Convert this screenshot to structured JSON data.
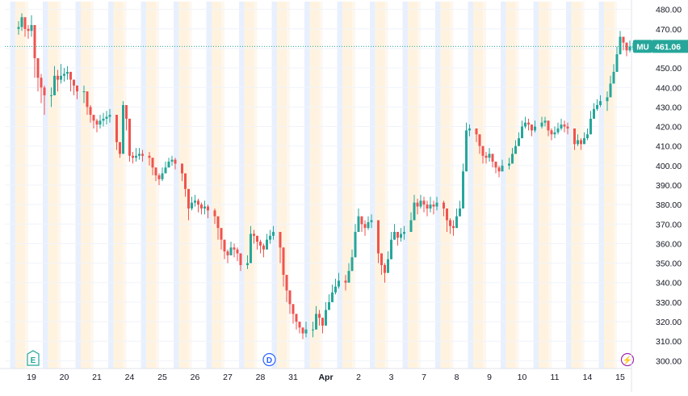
{
  "chart_data": {
    "type": "candlestick",
    "symbol": "MU",
    "last_price": "461.06",
    "colors": {
      "up": "#26a69a",
      "down": "#ef5350",
      "band_premarket": "#fff3e0",
      "band_afterhours": "#e8f0fe",
      "price_line": "#26a69a",
      "axis_text": "#131722",
      "grid": "#f0f3fa",
      "event_earnings": "#26a69a",
      "event_dividend": "#2962ff",
      "event_split": "#9c27b0"
    },
    "y_axis": {
      "min": 296,
      "max": 484,
      "ticks": [
        "300.00",
        "310.00",
        "320.00",
        "330.00",
        "340.00",
        "350.00",
        "360.00",
        "370.00",
        "380.00",
        "390.00",
        "400.00",
        "410.00",
        "420.00",
        "430.00",
        "440.00",
        "450.00",
        "460.00",
        "470.00",
        "480.00"
      ],
      "position": "right"
    },
    "x_axis": {
      "labels": [
        "19",
        "20",
        "21",
        "24",
        "25",
        "26",
        "27",
        "28",
        "31",
        "Apr",
        "2",
        "3",
        "7",
        "8",
        "9",
        "10",
        "11",
        "14",
        "15"
      ],
      "bold": [
        "Apr"
      ]
    },
    "events": [
      {
        "day": "19",
        "letter": "E",
        "icon": "earnings-icon"
      },
      {
        "day": "28",
        "letter": "D",
        "icon": "dividend-icon"
      },
      {
        "day": "15",
        "letter": "⚡",
        "icon": "split-icon"
      }
    ],
    "days": [
      {
        "label": "19",
        "path": [
          [
            471,
            474,
            467
          ],
          [
            476,
            478,
            469
          ],
          [
            470,
            473,
            466
          ],
          [
            469,
            472,
            465
          ],
          [
            472,
            477,
            466
          ],
          [
            455,
            460,
            445
          ],
          [
            445,
            450,
            438
          ],
          [
            440,
            447,
            432
          ],
          [
            436,
            441,
            426
          ]
        ]
      },
      {
        "label": "20",
        "path": [
          [
            436,
            440,
            430
          ],
          [
            446,
            451,
            440
          ],
          [
            444,
            449,
            438
          ],
          [
            446,
            452,
            442
          ],
          [
            447,
            450,
            443
          ],
          [
            448,
            451,
            444
          ],
          [
            444,
            447,
            438
          ],
          [
            441,
            444,
            436
          ],
          [
            438,
            441,
            434
          ]
        ]
      },
      {
        "label": "21",
        "path": [
          [
            438,
            441,
            432
          ],
          [
            430,
            436,
            426
          ],
          [
            426,
            431,
            422
          ],
          [
            423,
            426,
            419
          ],
          [
            421,
            424,
            417
          ],
          [
            423,
            426,
            419
          ],
          [
            424,
            427,
            420
          ],
          [
            425,
            428,
            421
          ],
          [
            426,
            429,
            422
          ]
        ]
      },
      {
        "label": "24",
        "path": [
          [
            412,
            416,
            408
          ],
          [
            406,
            410,
            404
          ],
          [
            431,
            433,
            412
          ],
          [
            424,
            428,
            418
          ],
          [
            405,
            409,
            402
          ],
          [
            404,
            407,
            401
          ],
          [
            405,
            409,
            402
          ],
          [
            406,
            409,
            403
          ],
          [
            405,
            408,
            402
          ]
        ]
      },
      {
        "label": "25",
        "path": [
          [
            404,
            407,
            400
          ],
          [
            399,
            402,
            395
          ],
          [
            395,
            398,
            392
          ],
          [
            393,
            396,
            390
          ],
          [
            396,
            399,
            392
          ],
          [
            399,
            402,
            396
          ],
          [
            402,
            404,
            399
          ],
          [
            403,
            405,
            400
          ],
          [
            401,
            404,
            398
          ]
        ]
      },
      {
        "label": "26",
        "path": [
          [
            396,
            399,
            392
          ],
          [
            388,
            392,
            384
          ],
          [
            378,
            382,
            372
          ],
          [
            381,
            384,
            377
          ],
          [
            382,
            385,
            379
          ],
          [
            380,
            383,
            376
          ],
          [
            378,
            381,
            375
          ],
          [
            379,
            382,
            375
          ],
          [
            377,
            380,
            373
          ]
        ]
      },
      {
        "label": "27",
        "path": [
          [
            374,
            378,
            370
          ],
          [
            368,
            372,
            362
          ],
          [
            362,
            366,
            357
          ],
          [
            356,
            360,
            352
          ],
          [
            354,
            357,
            350
          ],
          [
            358,
            361,
            354
          ],
          [
            357,
            360,
            353
          ],
          [
            355,
            358,
            351
          ],
          [
            349,
            355,
            346
          ]
        ]
      },
      {
        "label": "28",
        "path": [
          [
            350,
            354,
            347
          ],
          [
            365,
            369,
            361
          ],
          [
            364,
            367,
            360
          ],
          [
            361,
            364,
            357
          ],
          [
            359,
            362,
            355
          ],
          [
            357,
            360,
            353
          ],
          [
            362,
            365,
            358
          ],
          [
            364,
            367,
            360
          ],
          [
            366,
            369,
            362
          ]
        ]
      },
      {
        "label": "31",
        "path": [
          [
            358,
            364,
            350
          ],
          [
            344,
            348,
            338
          ],
          [
            336,
            341,
            330
          ],
          [
            329,
            333,
            324
          ],
          [
            324,
            328,
            319
          ],
          [
            320,
            323,
            316
          ],
          [
            317,
            320,
            314
          ],
          [
            314,
            317,
            311
          ],
          [
            316,
            320,
            312
          ]
        ]
      },
      {
        "label": "Apr",
        "path": [
          [
            316,
            320,
            312
          ],
          [
            324,
            328,
            320
          ],
          [
            322,
            326,
            318
          ],
          [
            318,
            322,
            314
          ],
          [
            326,
            330,
            322
          ],
          [
            330,
            334,
            326
          ],
          [
            335,
            339,
            331
          ],
          [
            338,
            342,
            334
          ],
          [
            341,
            345,
            337
          ]
        ]
      },
      {
        "label": "2",
        "path": [
          [
            340,
            344,
            336
          ],
          [
            346,
            350,
            342
          ],
          [
            353,
            357,
            349
          ],
          [
            366,
            370,
            362
          ],
          [
            374,
            378,
            370
          ],
          [
            370,
            374,
            366
          ],
          [
            368,
            372,
            364
          ],
          [
            371,
            374,
            367
          ],
          [
            372,
            375,
            368
          ]
        ]
      },
      {
        "label": "3",
        "path": [
          [
            355,
            358,
            350
          ],
          [
            349,
            353,
            344
          ],
          [
            345,
            350,
            340
          ],
          [
            352,
            356,
            346
          ],
          [
            362,
            366,
            358
          ],
          [
            366,
            370,
            362
          ],
          [
            363,
            366,
            359
          ],
          [
            365,
            368,
            361
          ],
          [
            366,
            369,
            362
          ]
        ]
      },
      {
        "label": "7",
        "path": [
          [
            372,
            376,
            368
          ],
          [
            381,
            385,
            377
          ],
          [
            379,
            383,
            375
          ],
          [
            382,
            385,
            378
          ],
          [
            380,
            384,
            376
          ],
          [
            378,
            382,
            374
          ],
          [
            380,
            384,
            376
          ],
          [
            379,
            382,
            375
          ],
          [
            381,
            384,
            377
          ]
        ]
      },
      {
        "label": "8",
        "path": [
          [
            378,
            382,
            374
          ],
          [
            372,
            376,
            366
          ],
          [
            369,
            373,
            365
          ],
          [
            368,
            372,
            364
          ],
          [
            374,
            378,
            370
          ],
          [
            378,
            382,
            374
          ],
          [
            397,
            401,
            393
          ],
          [
            418,
            422,
            414
          ],
          [
            419,
            421,
            415
          ]
        ]
      },
      {
        "label": "9",
        "path": [
          [
            416,
            419,
            412
          ],
          [
            410,
            414,
            406
          ],
          [
            405,
            408,
            401
          ],
          [
            404,
            407,
            401
          ],
          [
            406,
            409,
            402
          ],
          [
            402,
            405,
            399
          ],
          [
            399,
            402,
            396
          ],
          [
            397,
            400,
            394
          ],
          [
            400,
            403,
            397
          ]
        ]
      },
      {
        "label": "10",
        "path": [
          [
            401,
            404,
            398
          ],
          [
            406,
            409,
            403
          ],
          [
            410,
            413,
            407
          ],
          [
            414,
            417,
            411
          ],
          [
            420,
            423,
            417
          ],
          [
            422,
            425,
            419
          ],
          [
            421,
            424,
            418
          ],
          [
            418,
            421,
            415
          ],
          [
            420,
            423,
            417
          ]
        ]
      },
      {
        "label": "11",
        "path": [
          [
            422,
            425,
            419
          ],
          [
            423,
            425,
            420
          ],
          [
            418,
            421,
            415
          ],
          [
            416,
            419,
            413
          ],
          [
            417,
            420,
            414
          ],
          [
            419,
            422,
            416
          ],
          [
            421,
            424,
            418
          ],
          [
            420,
            423,
            417
          ],
          [
            419,
            422,
            416
          ]
        ]
      },
      {
        "label": "14",
        "path": [
          [
            411,
            414,
            408
          ],
          [
            413,
            416,
            410
          ],
          [
            411,
            414,
            408
          ],
          [
            414,
            417,
            411
          ],
          [
            416,
            419,
            413
          ],
          [
            424,
            428,
            420
          ],
          [
            429,
            432,
            426
          ],
          [
            431,
            434,
            428
          ],
          [
            433,
            436,
            430
          ]
        ]
      },
      {
        "label": "15",
        "path": [
          [
            435,
            438,
            428
          ],
          [
            442,
            446,
            438
          ],
          [
            448,
            452,
            444
          ],
          [
            457,
            461,
            453
          ],
          [
            466,
            469,
            462
          ],
          [
            463,
            466,
            459
          ],
          [
            459,
            462,
            456
          ],
          [
            461,
            464,
            458
          ],
          [
            461,
            463,
            459
          ]
        ]
      }
    ]
  }
}
